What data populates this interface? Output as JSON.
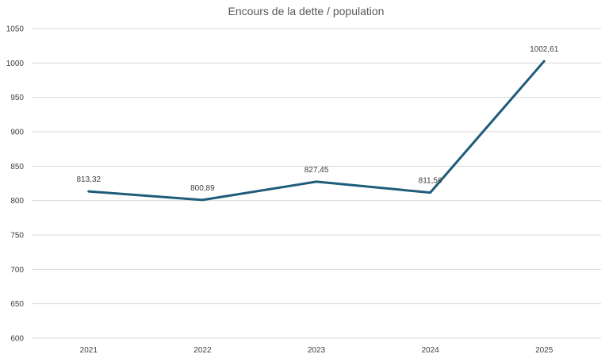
{
  "chart_data": {
    "type": "line",
    "title": "Encours de la dette / population",
    "xlabel": "",
    "ylabel": "",
    "categories": [
      "2021",
      "2022",
      "2023",
      "2024",
      "2025"
    ],
    "series": [
      {
        "values": [
          813.32,
          800.89,
          827.45,
          811.56,
          1002.61
        ],
        "labels": [
          "813,32",
          "800,89",
          "827,45",
          "811,56",
          "1002,61"
        ],
        "color": "#1f5c7a"
      }
    ],
    "ylim": [
      600,
      1050
    ],
    "yticks": [
      600,
      650,
      700,
      750,
      800,
      850,
      900,
      950,
      1000,
      1050
    ],
    "grid": true,
    "legend": "none"
  }
}
